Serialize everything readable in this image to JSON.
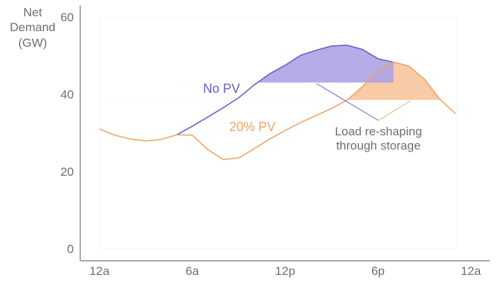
{
  "chart_data": {
    "type": "line",
    "title": "",
    "ylabel": [
      "Net",
      "Demand",
      "(GW)"
    ],
    "xlabel": "",
    "ylim": [
      0,
      60
    ],
    "y_ticks": [
      "0",
      "20",
      "40",
      "60"
    ],
    "x_ticks": [
      {
        "label": "12a",
        "hour": 0
      },
      {
        "label": "6a",
        "hour": 6
      },
      {
        "label": "12p",
        "hour": 12
      },
      {
        "label": "6p",
        "hour": 18
      },
      {
        "label": "12a",
        "hour": 24
      }
    ],
    "grid": false,
    "series": [
      {
        "name": "No PV",
        "color": "#6a5cc4",
        "fill_color": "#ada3e6",
        "fill_above": 43,
        "x": [
          5,
          6,
          7,
          8,
          9,
          10,
          11,
          12,
          13,
          14,
          15,
          16,
          17,
          18,
          19
        ],
        "values": [
          29.5,
          31.7,
          34.1,
          36.5,
          39.1,
          42.4,
          45.3,
          47.5,
          50.1,
          51.4,
          52.5,
          52.7,
          51.6,
          49.2,
          48.3
        ]
      },
      {
        "name": "20% PV",
        "color": "#eda465",
        "fill_color": "#f7c197",
        "fill_above": 38.5,
        "x": [
          0,
          1,
          2,
          3,
          4,
          5,
          6,
          7,
          8,
          9,
          10,
          11,
          12,
          13,
          14,
          15,
          16,
          17,
          18,
          19,
          20,
          21,
          22,
          23
        ],
        "values": [
          31.0,
          29.4,
          28.4,
          27.9,
          28.3,
          29.5,
          29.4,
          25.7,
          23.1,
          23.5,
          25.9,
          28.4,
          30.6,
          32.7,
          34.5,
          36.3,
          38.5,
          42.0,
          46.1,
          48.3,
          47.3,
          43.9,
          38.7,
          35.0
        ]
      }
    ],
    "annotations": {
      "storage_label": [
        "Load re-shaping",
        "through storage"
      ]
    },
    "axis_color": "#8a8a8a",
    "text_color": "#6e6e6e"
  }
}
